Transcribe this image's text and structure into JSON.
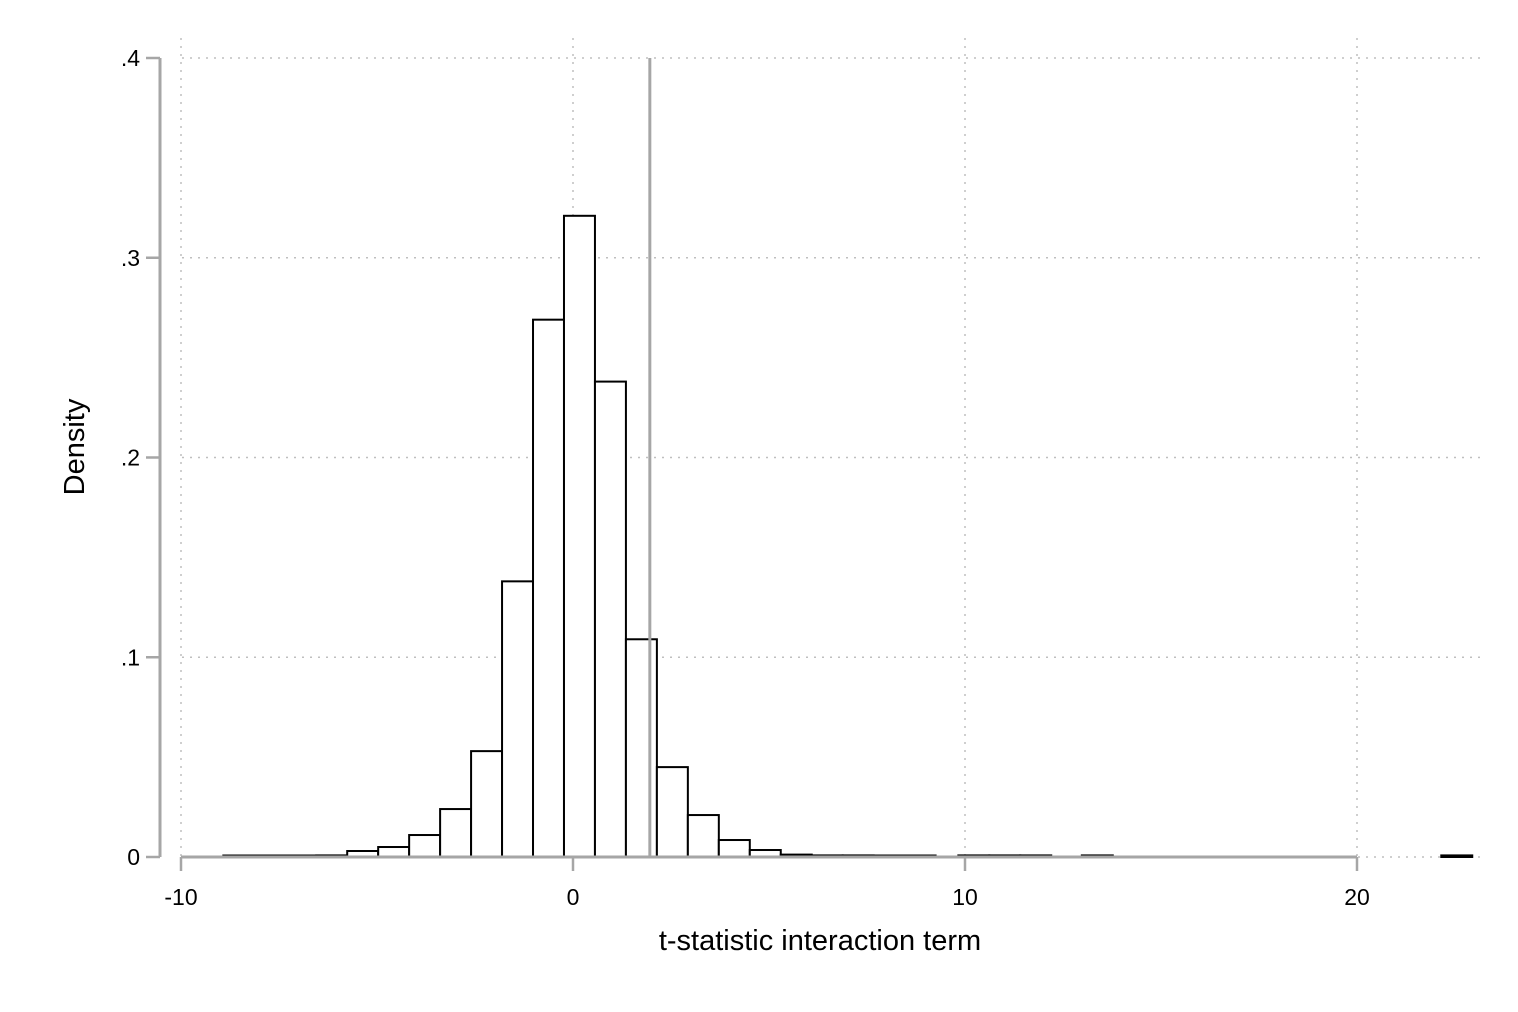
{
  "chart_data": {
    "type": "bar",
    "title": "",
    "xlabel": "t-statistic interaction term",
    "ylabel": "Density",
    "xlim": [
      -10,
      23.5
    ],
    "ylim": [
      0,
      0.4
    ],
    "x_ticks": [
      {
        "value": -10,
        "label": "-10"
      },
      {
        "value": 0,
        "label": "0"
      },
      {
        "value": 10,
        "label": "10"
      },
      {
        "value": 20,
        "label": "20"
      }
    ],
    "y_ticks": [
      {
        "value": 0,
        "label": "0"
      },
      {
        "value": 0.1,
        "label": ".1"
      },
      {
        "value": 0.2,
        "label": ".2"
      },
      {
        "value": 0.3,
        "label": ".3"
      },
      {
        "value": 0.4,
        "label": ".4"
      }
    ],
    "grid": true,
    "reference_line_x": 1.96,
    "bin_width": 0.79,
    "bins": [
      {
        "start": -8.92,
        "density": 0.0005
      },
      {
        "start": -8.13,
        "density": 0.0005
      },
      {
        "start": -7.34,
        "density": 0.0005
      },
      {
        "start": -6.55,
        "density": 0.0008
      },
      {
        "start": -5.76,
        "density": 0.003
      },
      {
        "start": -4.97,
        "density": 0.005
      },
      {
        "start": -4.18,
        "density": 0.011
      },
      {
        "start": -3.39,
        "density": 0.024
      },
      {
        "start": -2.6,
        "density": 0.053
      },
      {
        "start": -1.81,
        "density": 0.138
      },
      {
        "start": -1.02,
        "density": 0.269
      },
      {
        "start": -0.23,
        "density": 0.321
      },
      {
        "start": 0.56,
        "density": 0.238
      },
      {
        "start": 1.35,
        "density": 0.109
      },
      {
        "start": 2.14,
        "density": 0.045
      },
      {
        "start": 2.93,
        "density": 0.021
      },
      {
        "start": 3.72,
        "density": 0.0085
      },
      {
        "start": 4.51,
        "density": 0.0035
      },
      {
        "start": 5.3,
        "density": 0.0012
      },
      {
        "start": 6.09,
        "density": 0.0008
      },
      {
        "start": 6.88,
        "density": 0.0008
      },
      {
        "start": 7.67,
        "density": 0.0006
      },
      {
        "start": 8.46,
        "density": 0.0005
      },
      {
        "start": 9.83,
        "density": 0.0008
      },
      {
        "start": 10.62,
        "density": 0.0008
      },
      {
        "start": 11.41,
        "density": 0.0008
      },
      {
        "start": 12.98,
        "density": 0.0008
      },
      {
        "start": 22.15,
        "density": 0.0008
      }
    ],
    "colors": {
      "bar_fill": "#ffffff",
      "bar_stroke": "#000000",
      "grid": "#bfbfbf",
      "axis": "#a6a6a6",
      "reference_line": "#a6a6a6"
    }
  }
}
